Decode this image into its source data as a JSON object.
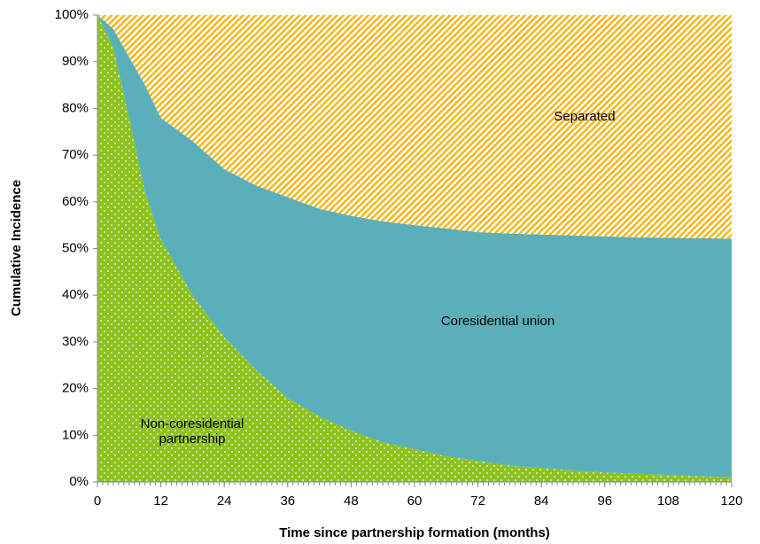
{
  "chart_data": {
    "type": "stacked_area",
    "x_label": "Time since partnership formation (months)",
    "y_label": "Cumulative Incidence",
    "x": [
      0,
      3,
      6,
      9,
      12,
      18,
      24,
      30,
      36,
      42,
      48,
      54,
      60,
      66,
      72,
      78,
      84,
      90,
      96,
      102,
      108,
      114,
      120
    ],
    "series": [
      {
        "name": "Non-coresidential partnership",
        "color": "#8dc21f",
        "values": [
          100,
          93,
          78,
          62,
          52,
          40,
          31,
          24,
          18,
          14,
          11,
          8.5,
          7,
          5.5,
          4.5,
          3.5,
          3,
          2.5,
          2,
          1.8,
          1.5,
          1.2,
          1
        ]
      },
      {
        "name": "Coresidential union",
        "color": "#5aafb8",
        "values": [
          0,
          4,
          13,
          23,
          26,
          33,
          36,
          39.5,
          43,
          44.5,
          46,
          47.3,
          48,
          48.8,
          49,
          49.7,
          50,
          50.3,
          50.6,
          50.6,
          50.8,
          51,
          51.1
        ]
      },
      {
        "name": "Separated",
        "color": "#f3b81f",
        "values": [
          0,
          3,
          9,
          15,
          22,
          27,
          33,
          36.5,
          39,
          41.5,
          43,
          44.2,
          45,
          45.7,
          46.5,
          46.8,
          47,
          47.2,
          47.4,
          47.6,
          47.7,
          47.8,
          47.9
        ]
      }
    ],
    "xlim": [
      0,
      120
    ],
    "xticks": [
      0,
      12,
      24,
      36,
      48,
      60,
      72,
      84,
      96,
      108,
      120
    ],
    "x_minor_step": 1,
    "ylim": [
      0,
      100
    ],
    "yticks": [
      {
        "value": 0,
        "label": "0%"
      },
      {
        "value": 10,
        "label": "10%"
      },
      {
        "value": 20,
        "label": "20%"
      },
      {
        "value": 30,
        "label": "30%"
      },
      {
        "value": 40,
        "label": "40%"
      },
      {
        "value": 50,
        "label": "50%"
      },
      {
        "value": 60,
        "label": "60%"
      },
      {
        "value": 70,
        "label": "70%"
      },
      {
        "value": 80,
        "label": "80%"
      },
      {
        "value": 90,
        "label": "90%"
      },
      {
        "value": 100,
        "label": "100%"
      }
    ]
  }
}
